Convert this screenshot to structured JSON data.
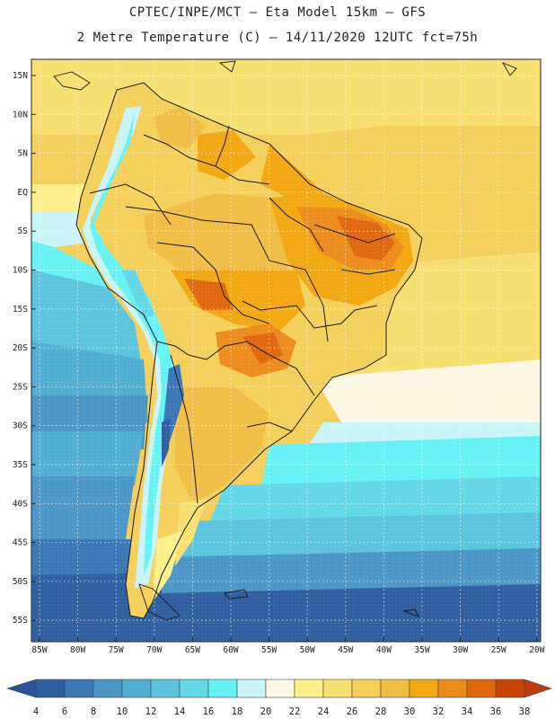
{
  "header": {
    "line1": "CPTEC/INPE/MCT –  Eta Model 15km – GFS",
    "line2": "2 Metre Temperature (C) – 14/11/2020 12UTC fct=75h"
  },
  "axes": {
    "lat_labels": [
      "15N",
      "10N",
      "5N",
      "EQ",
      "5S",
      "10S",
      "15S",
      "20S",
      "25S",
      "30S",
      "35S",
      "40S",
      "45S",
      "50S",
      "55S"
    ],
    "lon_labels": [
      "85W",
      "80W",
      "75W",
      "70W",
      "65W",
      "60W",
      "55W",
      "50W",
      "45W",
      "40W",
      "35W",
      "30W",
      "25W",
      "20W"
    ]
  },
  "colorbar": {
    "ticks": [
      "4",
      "6",
      "8",
      "10",
      "12",
      "14",
      "16",
      "18",
      "20",
      "22",
      "24",
      "26",
      "28",
      "30",
      "32",
      "34",
      "36",
      "38"
    ],
    "colors": [
      "#2f5fa0",
      "#3a77b4",
      "#4a96c6",
      "#52aed2",
      "#5bc3dc",
      "#63d8e6",
      "#66f2f4",
      "#c9f4f8",
      "#fdf7e6",
      "#fdf08a",
      "#f8e070",
      "#f4cf5a",
      "#f0be44",
      "#f2a812",
      "#ec8c1c",
      "#e0670e",
      "#c94505"
    ],
    "under_color": "#2a559a",
    "over_color": "#bd3d10"
  }
}
